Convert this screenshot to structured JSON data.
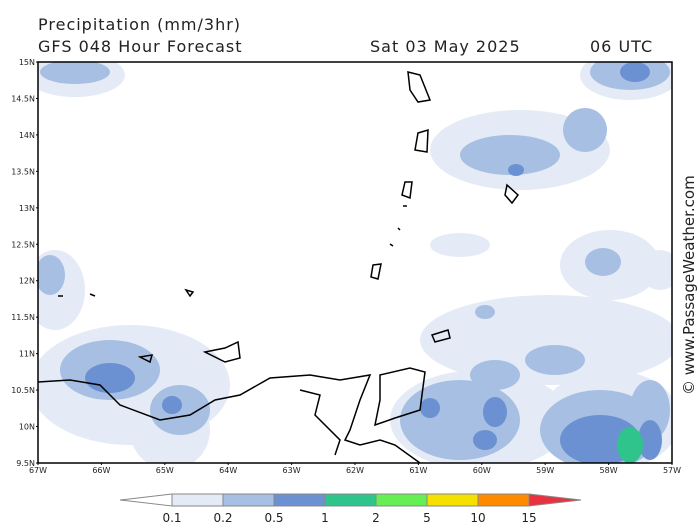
{
  "header": {
    "title": "Precipitation (mm/3hr)",
    "subtitle": "GFS 048 Hour Forecast",
    "date": "Sat 03 May 2025",
    "time": "06 UTC"
  },
  "map": {
    "lat_labels": [
      "15N",
      "14.5N",
      "14N",
      "13.5N",
      "13N",
      "12.5N",
      "12N",
      "11.5N",
      "11N",
      "10.5N",
      "10N",
      "9.5N"
    ],
    "lon_labels": [
      "67W",
      "66W",
      "65W",
      "64W",
      "63W",
      "62W",
      "61W",
      "60W",
      "59W",
      "58W",
      "57W"
    ]
  },
  "legend": {
    "levels": [
      0.1,
      0.2,
      0.5,
      1,
      2,
      5,
      10,
      15
    ],
    "colors": [
      "#ffffff",
      "#e4ebf6",
      "#a7bfe2",
      "#6b91d2",
      "#2fc48c",
      "#66ee55",
      "#f5e100",
      "#ff8a00",
      "#e8323f"
    ]
  },
  "credit": "© www.PassageWeather.com"
}
